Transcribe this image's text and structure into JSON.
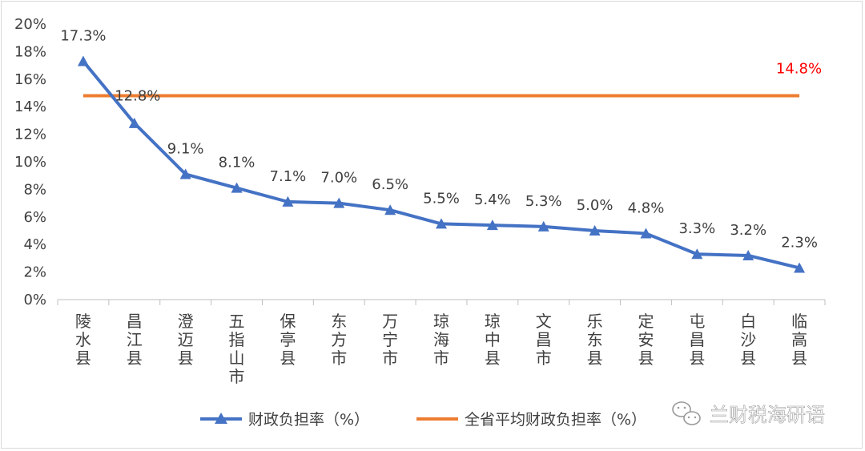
{
  "chart_data": {
    "type": "line",
    "title": "",
    "xlabel": "",
    "ylabel": "",
    "ylim": [
      0,
      20
    ],
    "yticks": [
      "0%",
      "2%",
      "4%",
      "6%",
      "8%",
      "10%",
      "12%",
      "14%",
      "16%",
      "18%",
      "20%"
    ],
    "grid": false,
    "legend_position": "bottom",
    "categories": [
      "陵水县",
      "昌江县",
      "澄迈县",
      "五指山市",
      "保亭县",
      "东方市",
      "万宁市",
      "琼海市",
      "琼中县",
      "文昌市",
      "乐东县",
      "定安县",
      "屯昌县",
      "白沙县",
      "临高县"
    ],
    "series": [
      {
        "name": "财政负担率（%）",
        "color": "#4472c4",
        "marker": "triangle",
        "values": [
          17.3,
          12.8,
          9.1,
          8.1,
          7.1,
          7.0,
          6.5,
          5.5,
          5.4,
          5.3,
          5.0,
          4.8,
          3.3,
          3.2,
          2.3
        ],
        "labels": [
          "17.3%",
          "12.8%",
          "9.1%",
          "8.1%",
          "7.1%",
          "7.0%",
          "6.5%",
          "5.5%",
          "5.4%",
          "5.3%",
          "5.0%",
          "4.8%",
          "3.3%",
          "3.2%",
          "2.3%"
        ]
      },
      {
        "name": "全省平均财政负担率（%）",
        "color": "#ed7d31",
        "value": 14.8,
        "label": "14.8%",
        "label_color": "#ff0000"
      }
    ]
  },
  "watermark": {
    "text": "兰财税海研语",
    "icon": "wechat-icon"
  }
}
